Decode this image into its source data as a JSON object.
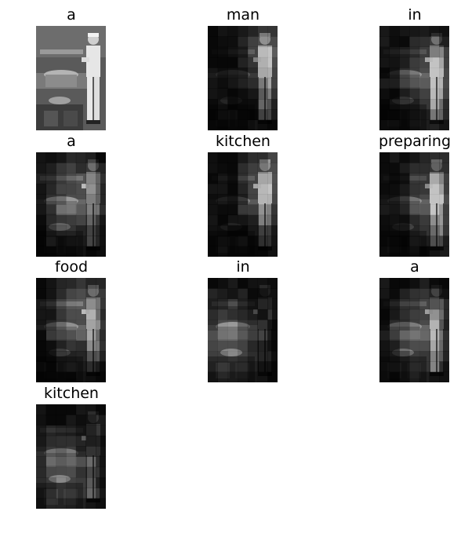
{
  "caption_words": [
    "a",
    "man",
    "in",
    "a",
    "kitchen",
    "preparing",
    "food",
    "in",
    "a",
    "kitchen"
  ],
  "panels": [
    {
      "word": "a"
    },
    {
      "word": "man"
    },
    {
      "word": "in"
    },
    {
      "word": "a"
    },
    {
      "word": "kitchen"
    },
    {
      "word": "preparing"
    },
    {
      "word": "food"
    },
    {
      "word": "in"
    },
    {
      "word": "a"
    },
    {
      "word": "kitchen"
    }
  ]
}
